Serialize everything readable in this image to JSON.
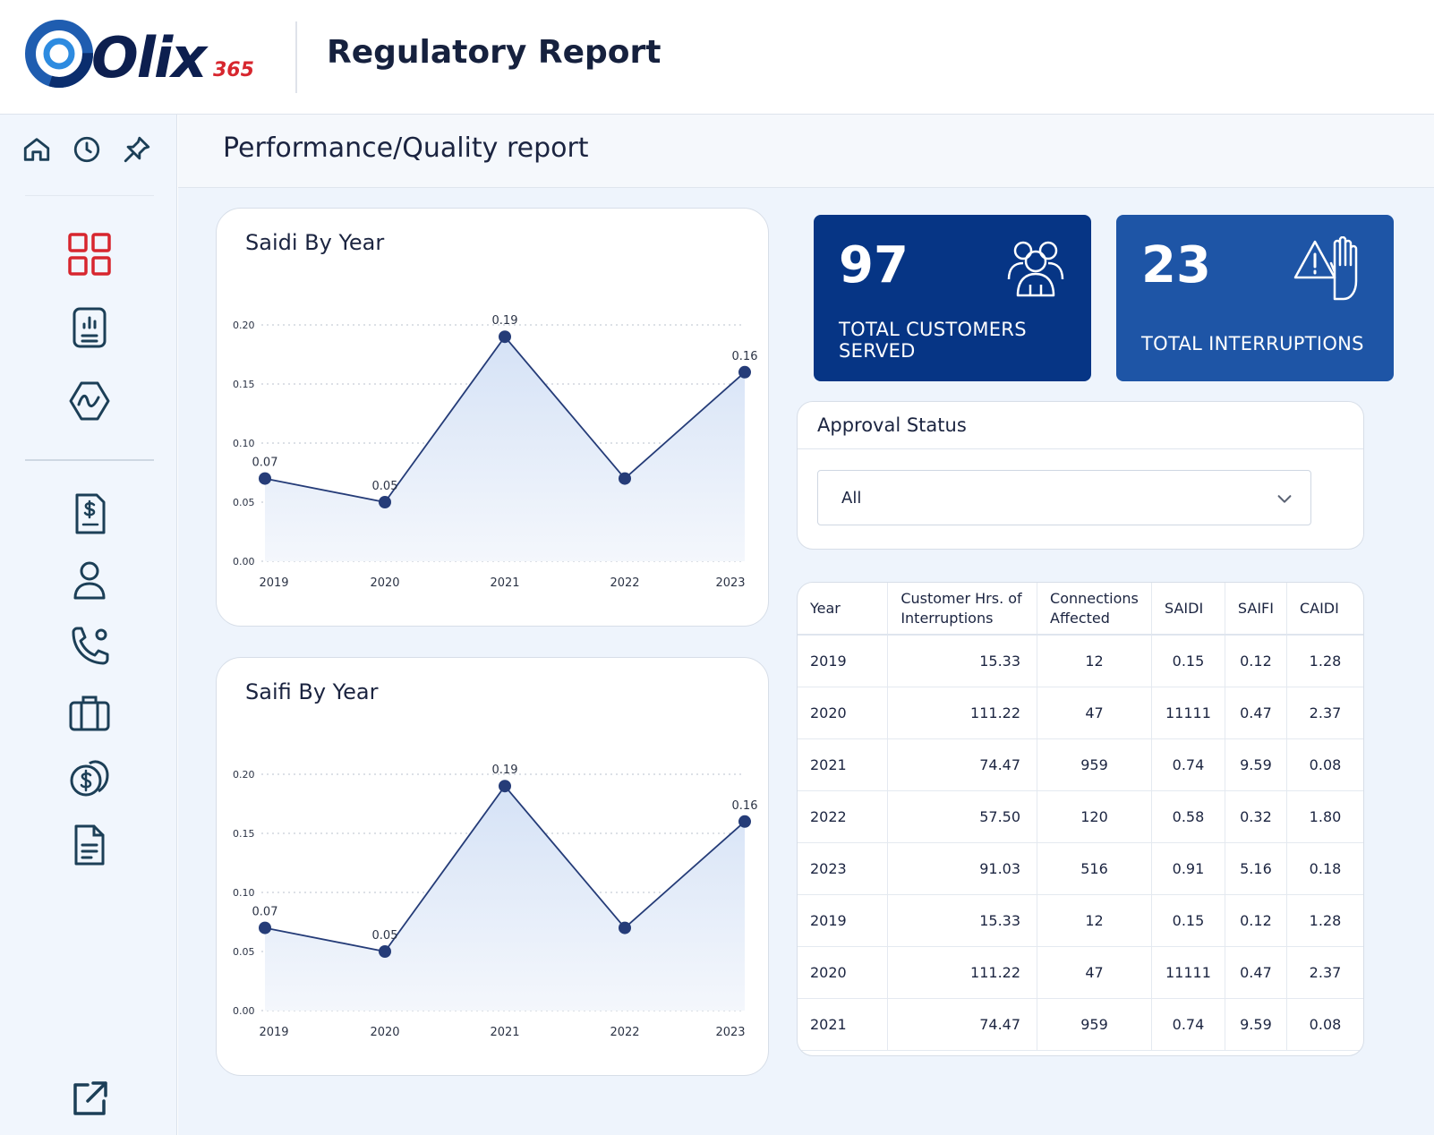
{
  "header": {
    "logo_text": "Olix",
    "logo_sub": "365",
    "title": "Regulatory Report"
  },
  "sidebar": {
    "top_icons": [
      "home-icon",
      "history-icon",
      "pin-icon"
    ],
    "items": [
      "dashboard-grid-icon",
      "report-chart-icon",
      "analytics-icon",
      "invoice-icon",
      "user-icon",
      "phone-icon",
      "briefcase-icon",
      "payments-icon",
      "document-icon"
    ],
    "bottom": "external-link-icon",
    "colors": {
      "active": "#d7262e",
      "icon": "#1c3f57"
    }
  },
  "page": {
    "title": "Performance/Quality report"
  },
  "charts": {
    "saidi": {
      "title": "Saidi By Year"
    },
    "saifi": {
      "title": "Saifi By Year"
    }
  },
  "chart_data": [
    {
      "type": "line",
      "title": "Saidi By Year",
      "categories": [
        "2019",
        "2020",
        "2021",
        "2022",
        "2023"
      ],
      "values": [
        0.07,
        0.05,
        0.19,
        0.07,
        0.16
      ],
      "data_labels": [
        "0.07",
        "0.05",
        "0.19",
        "",
        "0.16"
      ],
      "yticks": [
        "0.00",
        "0.05",
        "0.10",
        "0.15",
        "0.20"
      ],
      "ylim": [
        0,
        0.2
      ],
      "grid": true,
      "color": "#253c78"
    },
    {
      "type": "line",
      "title": "Saifi By Year",
      "categories": [
        "2019",
        "2020",
        "2021",
        "2022",
        "2023"
      ],
      "values": [
        0.07,
        0.05,
        0.19,
        0.07,
        0.16
      ],
      "data_labels": [
        "0.07",
        "0.05",
        "0.19",
        "",
        "0.16"
      ],
      "yticks": [
        "0.00",
        "0.05",
        "0.10",
        "0.15",
        "0.20"
      ],
      "ylim": [
        0,
        0.2
      ],
      "grid": true,
      "color": "#253c78"
    }
  ],
  "stats": {
    "customers": {
      "value": "97",
      "label_line1": "TOTAL CUSTOMERS",
      "label_line2": "SERVED",
      "color": "#063585"
    },
    "interruptions": {
      "value": "23",
      "label": "TOTAL INTERRUPTIONS",
      "color": "#1e55a6"
    }
  },
  "approval": {
    "title": "Approval Status",
    "selected": "All"
  },
  "table": {
    "headers": [
      "Year",
      "Customer Hrs. of Interruptions",
      "Connections Affected",
      "SAIDI",
      "SAIFI",
      "CAIDI"
    ],
    "rows": [
      [
        "2019",
        "15.33",
        "12",
        "0.15",
        "0.12",
        "1.28"
      ],
      [
        "2020",
        "111.22",
        "47",
        "11111",
        "0.47",
        "2.37"
      ],
      [
        "2021",
        "74.47",
        "959",
        "0.74",
        "9.59",
        "0.08"
      ],
      [
        "2022",
        "57.50",
        "120",
        "0.58",
        "0.32",
        "1.80"
      ],
      [
        "2023",
        "91.03",
        "516",
        "0.91",
        "5.16",
        "0.18"
      ],
      [
        "2019",
        "15.33",
        "12",
        "0.15",
        "0.12",
        "1.28"
      ],
      [
        "2020",
        "111.22",
        "47",
        "11111",
        "0.47",
        "2.37"
      ],
      [
        "2021",
        "74.47",
        "959",
        "0.74",
        "9.59",
        "0.08"
      ]
    ]
  }
}
